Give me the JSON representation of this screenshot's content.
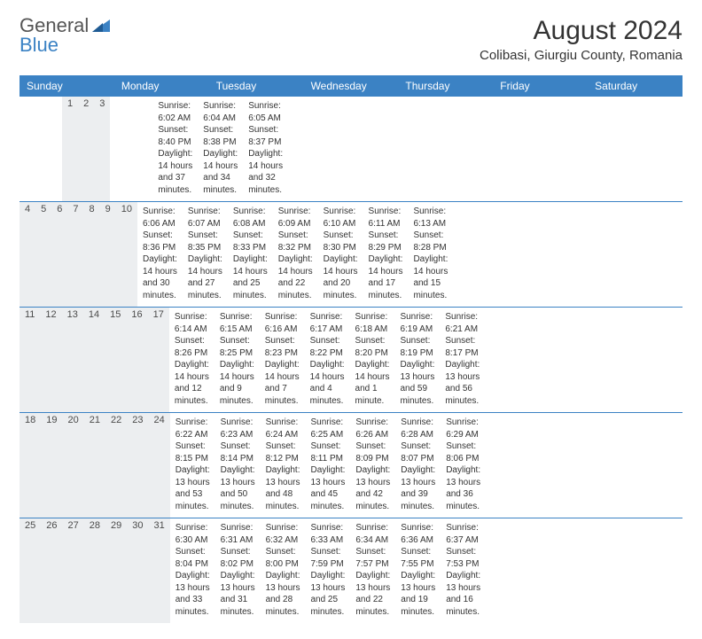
{
  "logo": {
    "line1": "General",
    "line2": "Blue"
  },
  "title": "August 2024",
  "location": "Colibasi, Giurgiu County, Romania",
  "day_header": {
    "bg_color": "#3b82c4",
    "text_color": "#ffffff",
    "fontsize": 12,
    "names": [
      "Sunday",
      "Monday",
      "Tuesday",
      "Wednesday",
      "Thursday",
      "Friday",
      "Saturday"
    ]
  },
  "calendar": {
    "date_row_bg": "#eceef0",
    "cell_fontsize": 10,
    "border_color": "#3b82c4",
    "weeks": [
      {
        "dates": [
          "",
          "",
          "",
          "",
          "1",
          "2",
          "3"
        ],
        "cells": [
          null,
          null,
          null,
          null,
          {
            "sunrise": "Sunrise: 6:02 AM",
            "sunset": "Sunset: 8:40 PM",
            "daylight": "Daylight: 14 hours and 37 minutes."
          },
          {
            "sunrise": "Sunrise: 6:04 AM",
            "sunset": "Sunset: 8:38 PM",
            "daylight": "Daylight: 14 hours and 34 minutes."
          },
          {
            "sunrise": "Sunrise: 6:05 AM",
            "sunset": "Sunset: 8:37 PM",
            "daylight": "Daylight: 14 hours and 32 minutes."
          }
        ]
      },
      {
        "dates": [
          "4",
          "5",
          "6",
          "7",
          "8",
          "9",
          "10"
        ],
        "cells": [
          {
            "sunrise": "Sunrise: 6:06 AM",
            "sunset": "Sunset: 8:36 PM",
            "daylight": "Daylight: 14 hours and 30 minutes."
          },
          {
            "sunrise": "Sunrise: 6:07 AM",
            "sunset": "Sunset: 8:35 PM",
            "daylight": "Daylight: 14 hours and 27 minutes."
          },
          {
            "sunrise": "Sunrise: 6:08 AM",
            "sunset": "Sunset: 8:33 PM",
            "daylight": "Daylight: 14 hours and 25 minutes."
          },
          {
            "sunrise": "Sunrise: 6:09 AM",
            "sunset": "Sunset: 8:32 PM",
            "daylight": "Daylight: 14 hours and 22 minutes."
          },
          {
            "sunrise": "Sunrise: 6:10 AM",
            "sunset": "Sunset: 8:30 PM",
            "daylight": "Daylight: 14 hours and 20 minutes."
          },
          {
            "sunrise": "Sunrise: 6:11 AM",
            "sunset": "Sunset: 8:29 PM",
            "daylight": "Daylight: 14 hours and 17 minutes."
          },
          {
            "sunrise": "Sunrise: 6:13 AM",
            "sunset": "Sunset: 8:28 PM",
            "daylight": "Daylight: 14 hours and 15 minutes."
          }
        ]
      },
      {
        "dates": [
          "11",
          "12",
          "13",
          "14",
          "15",
          "16",
          "17"
        ],
        "cells": [
          {
            "sunrise": "Sunrise: 6:14 AM",
            "sunset": "Sunset: 8:26 PM",
            "daylight": "Daylight: 14 hours and 12 minutes."
          },
          {
            "sunrise": "Sunrise: 6:15 AM",
            "sunset": "Sunset: 8:25 PM",
            "daylight": "Daylight: 14 hours and 9 minutes."
          },
          {
            "sunrise": "Sunrise: 6:16 AM",
            "sunset": "Sunset: 8:23 PM",
            "daylight": "Daylight: 14 hours and 7 minutes."
          },
          {
            "sunrise": "Sunrise: 6:17 AM",
            "sunset": "Sunset: 8:22 PM",
            "daylight": "Daylight: 14 hours and 4 minutes."
          },
          {
            "sunrise": "Sunrise: 6:18 AM",
            "sunset": "Sunset: 8:20 PM",
            "daylight": "Daylight: 14 hours and 1 minute."
          },
          {
            "sunrise": "Sunrise: 6:19 AM",
            "sunset": "Sunset: 8:19 PM",
            "daylight": "Daylight: 13 hours and 59 minutes."
          },
          {
            "sunrise": "Sunrise: 6:21 AM",
            "sunset": "Sunset: 8:17 PM",
            "daylight": "Daylight: 13 hours and 56 minutes."
          }
        ]
      },
      {
        "dates": [
          "18",
          "19",
          "20",
          "21",
          "22",
          "23",
          "24"
        ],
        "cells": [
          {
            "sunrise": "Sunrise: 6:22 AM",
            "sunset": "Sunset: 8:15 PM",
            "daylight": "Daylight: 13 hours and 53 minutes."
          },
          {
            "sunrise": "Sunrise: 6:23 AM",
            "sunset": "Sunset: 8:14 PM",
            "daylight": "Daylight: 13 hours and 50 minutes."
          },
          {
            "sunrise": "Sunrise: 6:24 AM",
            "sunset": "Sunset: 8:12 PM",
            "daylight": "Daylight: 13 hours and 48 minutes."
          },
          {
            "sunrise": "Sunrise: 6:25 AM",
            "sunset": "Sunset: 8:11 PM",
            "daylight": "Daylight: 13 hours and 45 minutes."
          },
          {
            "sunrise": "Sunrise: 6:26 AM",
            "sunset": "Sunset: 8:09 PM",
            "daylight": "Daylight: 13 hours and 42 minutes."
          },
          {
            "sunrise": "Sunrise: 6:28 AM",
            "sunset": "Sunset: 8:07 PM",
            "daylight": "Daylight: 13 hours and 39 minutes."
          },
          {
            "sunrise": "Sunrise: 6:29 AM",
            "sunset": "Sunset: 8:06 PM",
            "daylight": "Daylight: 13 hours and 36 minutes."
          }
        ]
      },
      {
        "dates": [
          "25",
          "26",
          "27",
          "28",
          "29",
          "30",
          "31"
        ],
        "cells": [
          {
            "sunrise": "Sunrise: 6:30 AM",
            "sunset": "Sunset: 8:04 PM",
            "daylight": "Daylight: 13 hours and 33 minutes."
          },
          {
            "sunrise": "Sunrise: 6:31 AM",
            "sunset": "Sunset: 8:02 PM",
            "daylight": "Daylight: 13 hours and 31 minutes."
          },
          {
            "sunrise": "Sunrise: 6:32 AM",
            "sunset": "Sunset: 8:00 PM",
            "daylight": "Daylight: 13 hours and 28 minutes."
          },
          {
            "sunrise": "Sunrise: 6:33 AM",
            "sunset": "Sunset: 7:59 PM",
            "daylight": "Daylight: 13 hours and 25 minutes."
          },
          {
            "sunrise": "Sunrise: 6:34 AM",
            "sunset": "Sunset: 7:57 PM",
            "daylight": "Daylight: 13 hours and 22 minutes."
          },
          {
            "sunrise": "Sunrise: 6:36 AM",
            "sunset": "Sunset: 7:55 PM",
            "daylight": "Daylight: 13 hours and 19 minutes."
          },
          {
            "sunrise": "Sunrise: 6:37 AM",
            "sunset": "Sunset: 7:53 PM",
            "daylight": "Daylight: 13 hours and 16 minutes."
          }
        ]
      }
    ]
  }
}
